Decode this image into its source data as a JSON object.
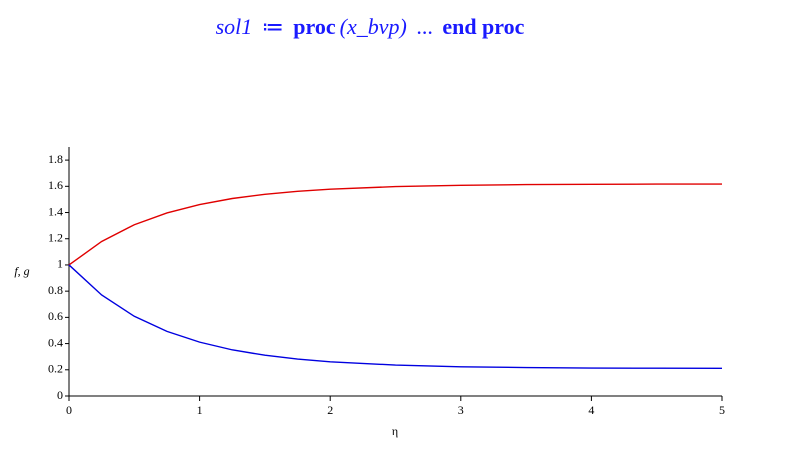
{
  "header": {
    "lhs": "sol1",
    "assign": "≔",
    "keyword": "proc",
    "params": "(x_bvp)",
    "ellipsis": "...",
    "end": "end proc"
  },
  "chart_data": {
    "type": "line",
    "xlabel": "η",
    "ylabel": "f, g",
    "x": [
      0,
      0.25,
      0.5,
      0.75,
      1,
      1.25,
      1.5,
      1.75,
      2,
      2.5,
      3,
      3.5,
      4,
      4.5,
      5
    ],
    "series": [
      {
        "color": "#e00000",
        "values": [
          1,
          1.179,
          1.307,
          1.397,
          1.461,
          1.507,
          1.539,
          1.562,
          1.578,
          1.598,
          1.608,
          1.613,
          1.615,
          1.617,
          1.617
        ]
      },
      {
        "color": "#0000e0",
        "values": [
          1,
          0.771,
          0.608,
          0.493,
          0.411,
          0.352,
          0.311,
          0.282,
          0.261,
          0.236,
          0.223,
          0.217,
          0.213,
          0.212,
          0.211
        ]
      }
    ],
    "xlim": [
      0,
      5
    ],
    "ylim": [
      0,
      1.9
    ],
    "xticks": [
      0,
      1,
      2,
      3,
      4,
      5
    ],
    "yticks": [
      0,
      0.2,
      0.4,
      0.6,
      0.8,
      1,
      1.2,
      1.4,
      1.6,
      1.8
    ]
  }
}
